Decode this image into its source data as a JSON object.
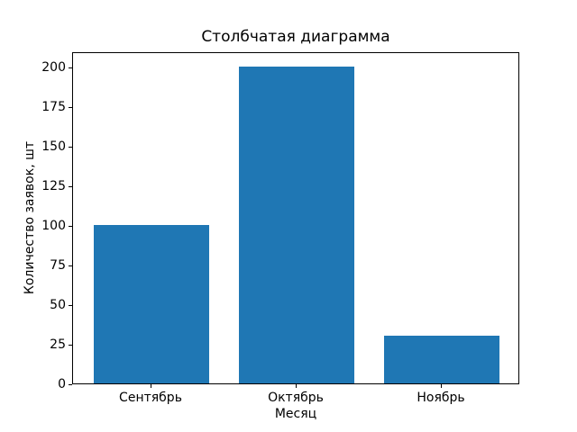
{
  "chart_data": {
    "type": "bar",
    "title": "Столбчатая диаграмма",
    "xlabel": "Месяц",
    "ylabel": "Количество заявок, шт",
    "categories": [
      "Сентябрь",
      "Октябрь",
      "Ноябрь"
    ],
    "values": [
      100,
      200,
      30
    ],
    "yticks": [
      0,
      25,
      50,
      75,
      100,
      125,
      150,
      175,
      200
    ],
    "ylim": [
      0,
      210
    ],
    "bar_color": "#1f77b4",
    "bar_width": 0.8,
    "grid": false,
    "legend": "none"
  }
}
